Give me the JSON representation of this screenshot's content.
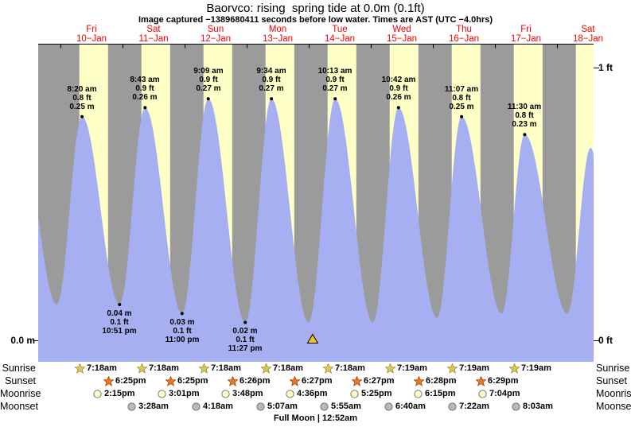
{
  "title": "Baorvco: rising  spring tide at 0.0m (0.1ft)",
  "subtitle": "Image captured −1389680411 seconds before low water. Times are AST (UTC −4.0hrs)",
  "colors": {
    "plot_bg": "#9b9b9b",
    "day_band": "#ffffc8",
    "curve_fill": "#a6aff2",
    "day_label": "#f20000",
    "sunrise_star": "#e3c83c",
    "sunrise_star_stroke": "#8c8c5a",
    "sunset_star": "#ee7621",
    "sunset_star_stroke": "#9a4a10",
    "moonrise_fill": "#ffffcc",
    "moonset_fill": "#b9b9b9",
    "moon_stroke": "#666666",
    "marker": "#f2c21c"
  },
  "chart_data": {
    "type": "area",
    "y_axis": {
      "left_label": "0.0 m",
      "right_top_label": "1 ft",
      "right_bottom_label": "0 ft",
      "y_range_ft": [
        0,
        1
      ]
    },
    "days": [
      {
        "day": "Fri",
        "date": "10−Jan"
      },
      {
        "day": "Sat",
        "date": "11−Jan"
      },
      {
        "day": "Sun",
        "date": "12−Jan"
      },
      {
        "day": "Mon",
        "date": "13−Jan"
      },
      {
        "day": "Tue",
        "date": "14−Jan"
      },
      {
        "day": "Wed",
        "date": "15−Jan"
      },
      {
        "day": "Thu",
        "date": "16−Jan"
      },
      {
        "day": "Fri",
        "date": "17−Jan"
      },
      {
        "day": "Sat",
        "date": "18−Jan"
      }
    ],
    "sunrise_hour": 7.3,
    "sunset_hour": 18.42,
    "high_tides": [
      {
        "time": "8:20 am",
        "ft": "0.8 ft",
        "m": "0.25 m",
        "t": 8.33,
        "v": 0.25
      },
      {
        "time": "8:43 am",
        "ft": "0.9 ft",
        "m": "0.26 m",
        "t": 32.72,
        "v": 0.26
      },
      {
        "time": "9:09 am",
        "ft": "0.9 ft",
        "m": "0.27 m",
        "t": 57.15,
        "v": 0.27
      },
      {
        "time": "9:34 am",
        "ft": "0.9 ft",
        "m": "0.27 m",
        "t": 81.57,
        "v": 0.27
      },
      {
        "time": "10:13 am",
        "ft": "0.9 ft",
        "m": "0.27 m",
        "t": 106.22,
        "v": 0.27
      },
      {
        "time": "10:42 am",
        "ft": "0.9 ft",
        "m": "0.26 m",
        "t": 130.7,
        "v": 0.26
      },
      {
        "time": "11:07 am",
        "ft": "0.8 ft",
        "m": "0.25 m",
        "t": 155.12,
        "v": 0.25
      },
      {
        "time": "11:30 am",
        "ft": "0.8 ft",
        "m": "0.23 m",
        "t": 179.5,
        "v": 0.23
      }
    ],
    "low_tides": [
      {
        "m": "0.04 m",
        "ft": "0.1 ft",
        "time": "10:51 pm",
        "t": 22.85,
        "v": 0.04
      },
      {
        "m": "0.03 m",
        "ft": "0.1 ft",
        "time": "11:00 pm",
        "t": 47.0,
        "v": 0.03
      },
      {
        "m": "0.02 m",
        "ft": "0.1 ft",
        "time": "11:27 pm",
        "t": 71.45,
        "v": 0.02
      }
    ],
    "curve_extremes": [
      {
        "t": -16.0,
        "v": 0.24
      },
      {
        "t": -1.4,
        "v": 0.04
      },
      {
        "t": 8.33,
        "v": 0.25
      },
      {
        "t": 22.85,
        "v": 0.04
      },
      {
        "t": 32.72,
        "v": 0.26
      },
      {
        "t": 47.0,
        "v": 0.03
      },
      {
        "t": 57.15,
        "v": 0.27
      },
      {
        "t": 71.45,
        "v": 0.02
      },
      {
        "t": 81.57,
        "v": 0.27
      },
      {
        "t": 95.95,
        "v": 0.02
      },
      {
        "t": 106.22,
        "v": 0.27
      },
      {
        "t": 120.8,
        "v": 0.02
      },
      {
        "t": 130.7,
        "v": 0.26
      },
      {
        "t": 145.6,
        "v": 0.025
      },
      {
        "t": 155.12,
        "v": 0.25
      },
      {
        "t": 170.6,
        "v": 0.03
      },
      {
        "t": 179.5,
        "v": 0.23
      },
      {
        "t": 196.0,
        "v": 0.03
      },
      {
        "t": 205.0,
        "v": 0.215
      },
      {
        "t": 214.0,
        "v": 0.04
      }
    ],
    "current_time_marker": {
      "t": 97.5
    }
  },
  "astro": {
    "rows": [
      {
        "label": "Sunrise",
        "icon": "sunrise-star-icon",
        "items": [
          {
            "time": "7:18am",
            "t": 7.3
          },
          {
            "time": "7:18am",
            "t": 31.3
          },
          {
            "time": "7:18am",
            "t": 55.3
          },
          {
            "time": "7:18am",
            "t": 79.3
          },
          {
            "time": "7:18am",
            "t": 103.3
          },
          {
            "time": "7:19am",
            "t": 127.3
          },
          {
            "time": "7:19am",
            "t": 151.3
          },
          {
            "time": "7:19am",
            "t": 175.3
          }
        ]
      },
      {
        "label": "Sunset",
        "icon": "sunset-star-icon",
        "items": [
          {
            "time": "6:25pm",
            "t": 18.42
          },
          {
            "time": "6:25pm",
            "t": 42.42
          },
          {
            "time": "6:26pm",
            "t": 66.42
          },
          {
            "time": "6:27pm",
            "t": 90.42
          },
          {
            "time": "6:27pm",
            "t": 114.42
          },
          {
            "time": "6:28pm",
            "t": 138.42
          },
          {
            "time": "6:29pm",
            "t": 162.42
          }
        ]
      },
      {
        "label": "Moonrise",
        "icon": "moonrise-circle-icon",
        "items": [
          {
            "time": "2:15pm",
            "t": 14.25
          },
          {
            "time": "3:01pm",
            "t": 39.02
          },
          {
            "time": "3:48pm",
            "t": 63.8
          },
          {
            "time": "4:36pm",
            "t": 88.6
          },
          {
            "time": "5:25pm",
            "t": 113.42
          },
          {
            "time": "6:15pm",
            "t": 138.25
          },
          {
            "time": "7:04pm",
            "t": 163.07
          }
        ]
      },
      {
        "label": "Moonset",
        "icon": "moonset-circle-icon",
        "items": [
          {
            "time": "3:28am",
            "t": 27.47
          },
          {
            "time": "4:18am",
            "t": 52.3
          },
          {
            "time": "5:07am",
            "t": 77.12
          },
          {
            "time": "5:55am",
            "t": 101.92
          },
          {
            "time": "6:40am",
            "t": 126.67
          },
          {
            "time": "7:22am",
            "t": 151.37
          },
          {
            "time": "8:03am",
            "t": 176.05
          }
        ]
      }
    ],
    "footer": "Full Moon | 12:52am"
  }
}
